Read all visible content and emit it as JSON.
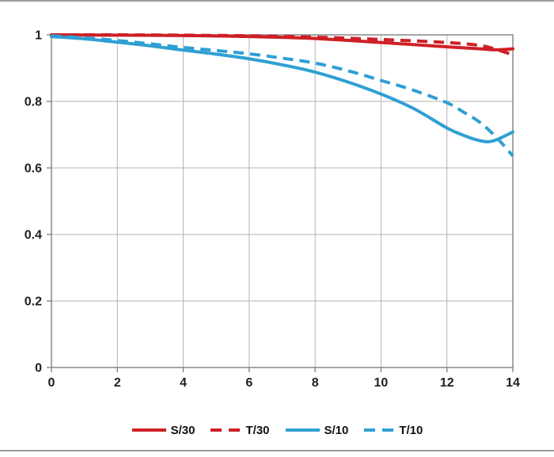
{
  "page": {
    "background": "#ffffff",
    "rule_color": "#9b9b9b"
  },
  "chart_data": {
    "type": "line",
    "title": "",
    "xlabel": "",
    "ylabel": "",
    "xlim": [
      0,
      14
    ],
    "ylim": [
      0,
      1
    ],
    "grid": true,
    "grid_color": "#b3b3b3",
    "axis_color": "#7f7f7f",
    "axis_text_color": "#1f1f1f",
    "x_ticks": [
      0,
      2,
      4,
      6,
      8,
      10,
      12,
      14
    ],
    "x_tick_labels": [
      "0",
      "2",
      "4",
      "6",
      "8",
      "10",
      "12",
      "14"
    ],
    "y_ticks": [
      0,
      0.2,
      0.4,
      0.6,
      0.8,
      1
    ],
    "y_tick_labels": [
      "0",
      "0.2",
      "0.4",
      "0.6",
      "0.8",
      "1"
    ],
    "legend_position": "bottom-center",
    "series": [
      {
        "name": "S/30",
        "color": "#cd2026",
        "style": "solid",
        "x": [
          0,
          2,
          4,
          6,
          8,
          10,
          12,
          13,
          13.5,
          14
        ],
        "y": [
          1.0,
          0.999,
          0.998,
          0.995,
          0.989,
          0.977,
          0.964,
          0.958,
          0.955,
          0.958
        ]
      },
      {
        "name": "T/30",
        "color": "#cd2026",
        "style": "dashed",
        "x": [
          0,
          2,
          4,
          6,
          8,
          10,
          12,
          13,
          13.5,
          14
        ],
        "y": [
          1.0,
          1.0,
          0.999,
          0.997,
          0.993,
          0.986,
          0.977,
          0.968,
          0.956,
          0.94
        ]
      },
      {
        "name": "S/10",
        "color": "#2f9fd4",
        "style": "solid",
        "x": [
          0,
          1,
          2,
          3,
          4,
          5,
          6,
          7,
          8,
          9,
          10,
          11,
          12,
          12.5,
          13,
          13.4,
          14
        ],
        "y": [
          0.995,
          0.988,
          0.978,
          0.967,
          0.954,
          0.942,
          0.928,
          0.91,
          0.888,
          0.858,
          0.822,
          0.778,
          0.72,
          0.698,
          0.682,
          0.681,
          0.708
        ]
      },
      {
        "name": "T/10",
        "color": "#2f9fd4",
        "style": "dashed",
        "x": [
          0,
          1,
          2,
          3,
          4,
          5,
          6,
          7,
          8,
          9,
          10,
          11,
          12,
          12.5,
          13,
          13.5,
          14
        ],
        "y": [
          0.997,
          0.991,
          0.983,
          0.973,
          0.962,
          0.953,
          0.943,
          0.93,
          0.915,
          0.892,
          0.863,
          0.833,
          0.796,
          0.768,
          0.737,
          0.692,
          0.636
        ]
      }
    ]
  }
}
